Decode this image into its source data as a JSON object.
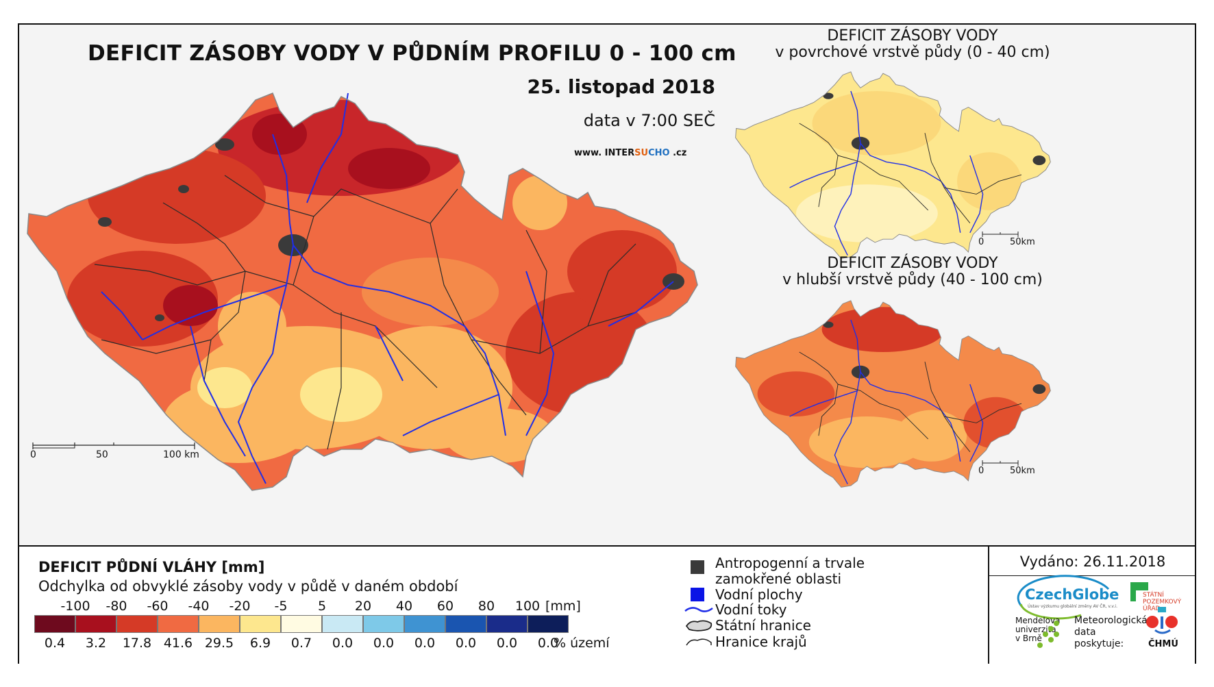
{
  "main": {
    "title": "DEFICIT ZÁSOBY VODY V PŮDNÍM PROFILU 0 - 100 cm",
    "date": "25. listopad 2018",
    "time": "data v 7:00 SEČ",
    "website": {
      "prefix": "www. INTER",
      "su": "SU",
      "cho": "CHO",
      "suffix": " .cz"
    },
    "scalebar": {
      "l0": "0",
      "l50": "50",
      "l100": "100 km"
    }
  },
  "inset_top": {
    "title_line1": "DEFICIT ZÁSOBY VODY",
    "title_line2": "v povrchové vrstvě půdy (0 - 40 cm)",
    "scale_l0": "0",
    "scale_l50": "50km"
  },
  "inset_bottom": {
    "title_line1": "DEFICIT ZÁSOBY VODY",
    "title_line2": "v hlubší vrstvě půdy (40 - 100 cm)",
    "scale_l0": "0",
    "scale_l50": "50km"
  },
  "legend": {
    "title": "DEFICIT PŮDNÍ VLÁHY [mm]",
    "subtitle": "Odchylka od obvyklé zásoby vody v půdě v daném období",
    "ticks": [
      "-100",
      "-80",
      "-60",
      "-40",
      "-20",
      "-5",
      "5",
      "20",
      "40",
      "60",
      "80",
      "100"
    ],
    "unit": "[mm]",
    "colors": [
      "#6e0a1e",
      "#a8101e",
      "#d53a26",
      "#f06a42",
      "#fbb660",
      "#fde78e",
      "#fffbe2",
      "#c9e9f4",
      "#7ec9e8",
      "#3f93d2",
      "#1a55b0",
      "#1a2c8a",
      "#0d1e5a"
    ],
    "percentages": [
      "0.4",
      "3.2",
      "17.8",
      "41.6",
      "29.5",
      "6.9",
      "0.7",
      "0.0",
      "0.0",
      "0.0",
      "0.0",
      "0.0",
      "0.0"
    ],
    "percent_label": "% území"
  },
  "legend_symbols": {
    "anthropogenic_line1": "Antropogenní a trvale",
    "anthropogenic_line2": "zamokřené oblasti",
    "water_bodies": "Vodní plochy",
    "rivers": "Vodní toky",
    "state_border": "Státní hranice",
    "region_border": "Hranice krajů",
    "anthropogenic_color": "#3a3a3a",
    "water_color": "#0a14e6",
    "river_color": "#1f2ee8"
  },
  "issued": {
    "text": "Vydáno: 26.11.2018",
    "czechglobe": "CzechGlobe",
    "czechglobe_sub": "Ústav výzkumu globální změny AV ČR, v.v.i.",
    "spu_line1": "STÁTNÍ",
    "spu_line2": "POZEMKOVÝ",
    "spu_line3": "ÚŘAD",
    "mendel_line1": "Mendelova",
    "mendel_line2": "univerzita",
    "mendel_line3": "v Brně",
    "meteo_line1": "Meteorologická",
    "meteo_line2": "data",
    "meteo_line3": "poskytuje:",
    "chmu": "ČHMÚ"
  }
}
